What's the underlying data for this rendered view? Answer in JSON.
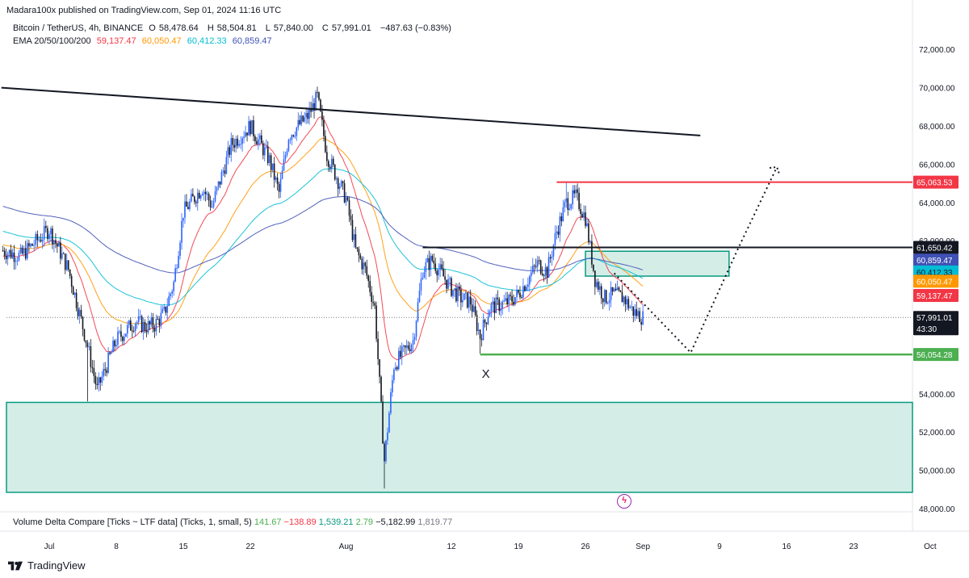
{
  "header": {
    "published": "Madara100x published on TradingView.com, Sep 01, 2024 11:16 UTC"
  },
  "legend": {
    "symbol": "Bitcoin / TetherUS, 4h, BINANCE",
    "open_label": "O",
    "open": "58,478.64",
    "high_label": "H",
    "high": "58,504.81",
    "low_label": "L",
    "low": "57,840.00",
    "close_label": "C",
    "close": "57,991.01",
    "change": "−487.63 (−0.83%)",
    "ema_label": "EMA 20/50/100/200",
    "ema20": "59,137.47",
    "ema50": "60,050.47",
    "ema100": "60,412.33",
    "ema200": "60,859.47"
  },
  "volume_delta": {
    "label": "Volume Delta Compare [Ticks ~ LTF data] (Ticks, 1, small, 5)",
    "v1": "141.67",
    "v2": "−138.89",
    "v3": "1,539.21",
    "v4": "2.79",
    "v5": "−5,182.99",
    "v6": "1,819.77"
  },
  "footer": {
    "brand": "TradingView"
  },
  "annotations": {
    "x_mark": "X"
  },
  "colors": {
    "up": "#2962ff",
    "down": "#131722",
    "ema20": "#f23645",
    "ema50": "#ff9800",
    "ema100": "#00bcd4",
    "ema200": "#3f51b5",
    "zone_fill": "#d4ede7",
    "zone_stroke": "#089981",
    "resistance": "#f23645",
    "support": "#4caf50",
    "trendline": "#131722"
  },
  "chart_data": {
    "type": "candlestick",
    "symbol": "BTCUSDT",
    "timeframe": "4h",
    "ylim": [
      47500,
      73500
    ],
    "y_ticks": [
      48000,
      50000,
      52000,
      54000,
      56000,
      58000,
      60000,
      62000,
      64000,
      66000,
      68000,
      70000,
      72000
    ],
    "y_tick_labels": [
      "48,000.00",
      "50,000.00",
      "52,000.00",
      "54,000.00",
      "56,000.00",
      "58,000.00",
      "60,000.00",
      "62,000.00",
      "64,000.00",
      "66,000.00",
      "68,000.00",
      "70,000.00",
      "72,000.00"
    ],
    "x_tick_labels": [
      "Jul",
      "8",
      "15",
      "22",
      "Aug",
      "12",
      "19",
      "26",
      "Sep",
      "9",
      "16",
      "23",
      "Oct"
    ],
    "x_tick_dates": [
      "2024-07-01",
      "2024-07-08",
      "2024-07-15",
      "2024-07-22",
      "2024-08-01",
      "2024-08-12",
      "2024-08-19",
      "2024-08-26",
      "2024-09-01",
      "2024-09-09",
      "2024-09-16",
      "2024-09-23",
      "2024-10-01"
    ],
    "close_path": [
      [
        "2024-06-26",
        61500
      ],
      [
        "2024-06-28",
        61200
      ],
      [
        "2024-07-01",
        62600
      ],
      [
        "2024-07-03",
        60500
      ],
      [
        "2024-07-05",
        56500
      ],
      [
        "2024-07-06",
        54200
      ],
      [
        "2024-07-08",
        56800
      ],
      [
        "2024-07-10",
        57800
      ],
      [
        "2024-07-11",
        57500
      ],
      [
        "2024-07-12",
        57600
      ],
      [
        "2024-07-13",
        58200
      ],
      [
        "2024-07-14",
        59800
      ],
      [
        "2024-07-15",
        63500
      ],
      [
        "2024-07-17",
        64800
      ],
      [
        "2024-07-18",
        63800
      ],
      [
        "2024-07-20",
        67000
      ],
      [
        "2024-07-22",
        68000
      ],
      [
        "2024-07-24",
        66200
      ],
      [
        "2024-07-25",
        64500
      ],
      [
        "2024-07-26",
        67500
      ],
      [
        "2024-07-28",
        68500
      ],
      [
        "2024-07-29",
        69500
      ],
      [
        "2024-07-30",
        66500
      ],
      [
        "2024-08-01",
        64200
      ],
      [
        "2024-08-02",
        61500
      ],
      [
        "2024-08-03",
        60500
      ],
      [
        "2024-08-04",
        58500
      ],
      [
        "2024-08-05",
        50500
      ],
      [
        "2024-08-06",
        55500
      ],
      [
        "2024-08-08",
        56800
      ],
      [
        "2024-08-09",
        60500
      ],
      [
        "2024-08-10",
        61000
      ],
      [
        "2024-08-12",
        59500
      ],
      [
        "2024-08-13",
        59000
      ],
      [
        "2024-08-14",
        58800
      ],
      [
        "2024-08-15",
        57000
      ],
      [
        "2024-08-16",
        58500
      ],
      [
        "2024-08-18",
        58800
      ],
      [
        "2024-08-19",
        59200
      ],
      [
        "2024-08-21",
        60800
      ],
      [
        "2024-08-22",
        60400
      ],
      [
        "2024-08-23",
        62500
      ],
      [
        "2024-08-24",
        64000
      ],
      [
        "2024-08-25",
        64300
      ],
      [
        "2024-08-26",
        63200
      ],
      [
        "2024-08-27",
        60000
      ],
      [
        "2024-08-28",
        59000
      ],
      [
        "2024-08-29",
        59200
      ],
      [
        "2024-08-30",
        59000
      ],
      [
        "2024-08-31",
        58300
      ],
      [
        "2024-09-01",
        57991.01
      ]
    ],
    "ema": [
      {
        "name": "EMA 20",
        "last": 59137.47
      },
      {
        "name": "EMA 50",
        "last": 60050.47
      },
      {
        "name": "EMA 100",
        "last": 60412.33
      },
      {
        "name": "EMA 200",
        "last": 60859.47
      }
    ],
    "price_labels": [
      {
        "value": 65063.53,
        "text": "65,063.53"
      },
      {
        "value": 61650.42,
        "text": "61,650.42"
      },
      {
        "value": 60859.47,
        "text": "60,859.47"
      },
      {
        "value": 60412.33,
        "text": "60,412.33"
      },
      {
        "value": 60050.47,
        "text": "60,050.47"
      },
      {
        "value": 59137.47,
        "text": "59,137.47"
      },
      {
        "value": 57991.01,
        "text": "57,991.01",
        "countdown": "43:30"
      },
      {
        "value": 56054.28,
        "text": "56,054.28"
      }
    ],
    "levels": {
      "resistance_red": {
        "value": 65063.53,
        "from": "2024-08-23",
        "to": "2024-09-25"
      },
      "horizontal_black": {
        "value": 61650.42,
        "from": "2024-08-09",
        "to": "2024-10-03"
      },
      "support_green": {
        "value": 56054.28,
        "from": "2024-08-15",
        "to": "2024-10-03"
      },
      "trendline": {
        "from": [
          "2024-06-26",
          70000
        ],
        "to": [
          "2024-09-07",
          67500
        ]
      }
    },
    "zones": [
      {
        "name": "demand zone",
        "from": "2024-06-26",
        "to": "2024-10-03",
        "top": 53550,
        "bottom": 48850
      },
      {
        "name": "retest box",
        "from": "2024-08-26",
        "to": "2024-09-10",
        "top": 61450,
        "bottom": 60150
      }
    ],
    "projection": [
      [
        "2024-08-29",
        60300
      ],
      [
        "2024-09-06",
        56150
      ],
      [
        "2024-09-11",
        61650
      ],
      [
        "2024-09-15",
        65850
      ]
    ],
    "x_marker": {
      "date": "2024-08-15",
      "value": 55350
    }
  }
}
